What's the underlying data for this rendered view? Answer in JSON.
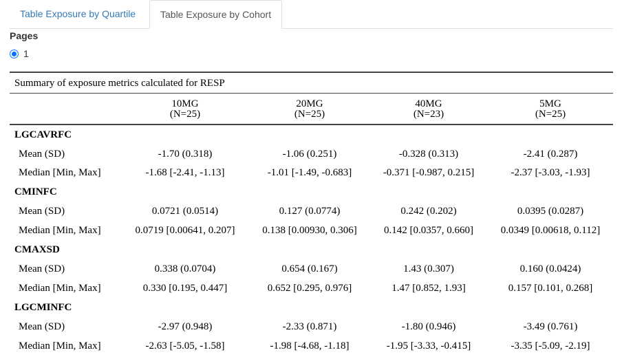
{
  "tabs": [
    {
      "label": "Table Exposure by Quartile",
      "active": false
    },
    {
      "label": "Table Exposure by Cohort",
      "active": true
    }
  ],
  "pages": {
    "label": "Pages",
    "options": [
      {
        "label": "1",
        "selected": true
      }
    ]
  },
  "table": {
    "caption": "Summary of exposure metrics calculated for RESP",
    "columns": [
      {
        "name": "10MG",
        "n": "(N=25)"
      },
      {
        "name": "20MG",
        "n": "(N=25)"
      },
      {
        "name": "40MG",
        "n": "(N=23)"
      },
      {
        "name": "5MG",
        "n": "(N=25)"
      }
    ],
    "stat_labels": {
      "mean": "Mean (SD)",
      "median": "Median [Min, Max]"
    },
    "variables": [
      {
        "name": "LGCAVRFC",
        "mean": [
          "-1.70 (0.318)",
          "-1.06 (0.251)",
          "-0.328 (0.313)",
          "-2.41 (0.287)"
        ],
        "median": [
          "-1.68 [-2.41, -1.13]",
          "-1.01 [-1.49, -0.683]",
          "-0.371 [-0.987, 0.215]",
          "-2.37 [-3.03, -1.93]"
        ]
      },
      {
        "name": "CMINFC",
        "mean": [
          "0.0721 (0.0514)",
          "0.127 (0.0774)",
          "0.242 (0.202)",
          "0.0395 (0.0287)"
        ],
        "median": [
          "0.0719 [0.00641, 0.207]",
          "0.138 [0.00930, 0.306]",
          "0.142 [0.0357, 0.660]",
          "0.0349 [0.00618, 0.112]"
        ]
      },
      {
        "name": "CMAXSD",
        "mean": [
          "0.338 (0.0704)",
          "0.654 (0.167)",
          "1.43 (0.307)",
          "0.160 (0.0424)"
        ],
        "median": [
          "0.330 [0.195, 0.447]",
          "0.652 [0.295, 0.976]",
          "1.47 [0.852, 1.93]",
          "0.157 [0.101, 0.268]"
        ]
      },
      {
        "name": "LGCMINFC",
        "mean": [
          "-2.97 (0.948)",
          "-2.33 (0.871)",
          "-1.80 (0.946)",
          "-3.49 (0.761)"
        ],
        "median": [
          "-2.63 [-5.05, -1.58]",
          "-1.98 [-4.68, -1.18]",
          "-1.95 [-3.33, -0.415]",
          "-3.35 [-5.09, -2.19]"
        ]
      }
    ]
  }
}
